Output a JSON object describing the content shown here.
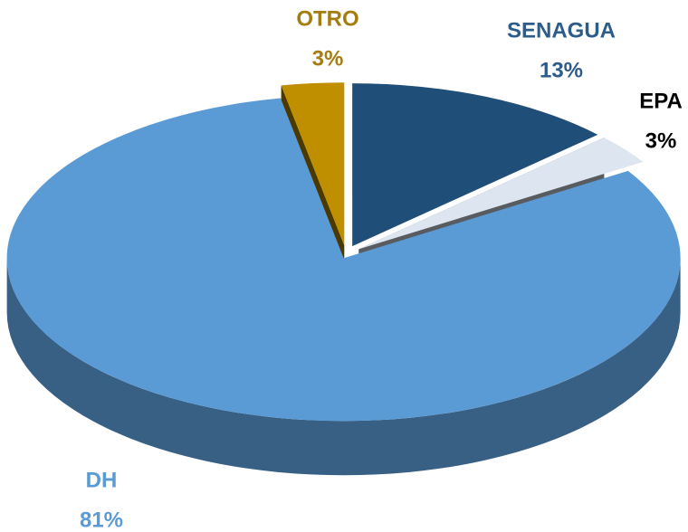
{
  "chart_data": {
    "type": "pie",
    "categories": [
      "SENAGUA",
      "EPA",
      "DH",
      "OTRO"
    ],
    "values": [
      13,
      3,
      81,
      3
    ],
    "value_labels": [
      "13%",
      "3%",
      "81%",
      "3%"
    ],
    "colors": [
      "#1f4e79",
      "#dde6f0",
      "#5b9bd5",
      "#bf8f00"
    ]
  }
}
